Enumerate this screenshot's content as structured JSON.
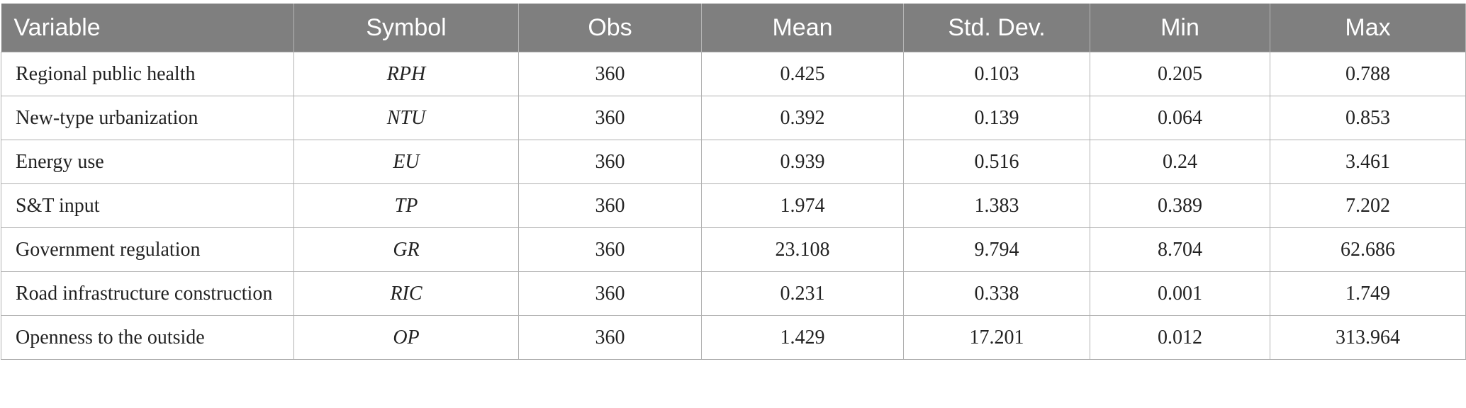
{
  "table": {
    "columns": [
      "Variable",
      "Symbol",
      "Obs",
      "Mean",
      "Std. Dev.",
      "Min",
      "Max"
    ],
    "rows": [
      [
        "Regional public health",
        "RPH",
        "360",
        "0.425",
        "0.103",
        "0.205",
        "0.788"
      ],
      [
        "New-type urbanization",
        "NTU",
        "360",
        "0.392",
        "0.139",
        "0.064",
        "0.853"
      ],
      [
        "Energy use",
        "EU",
        "360",
        "0.939",
        "0.516",
        "0.24",
        "3.461"
      ],
      [
        "S&T input",
        "TP",
        "360",
        "1.974",
        "1.383",
        "0.389",
        "7.202"
      ],
      [
        "Government regulation",
        "GR",
        "360",
        "23.108",
        "9.794",
        "8.704",
        "62.686"
      ],
      [
        "Road infrastructure construction",
        "RIC",
        "360",
        "0.231",
        "0.338",
        "0.001",
        "1.749"
      ],
      [
        "Openness to the outside",
        "OP",
        "360",
        "1.429",
        "17.201",
        "0.012",
        "313.964"
      ]
    ]
  }
}
